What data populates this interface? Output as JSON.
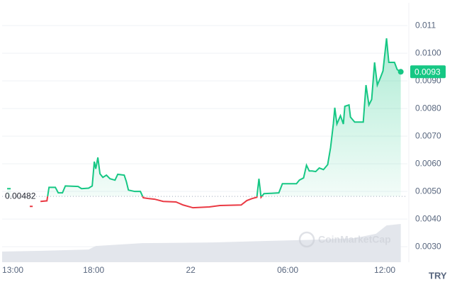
{
  "chart_data": {
    "type": "line",
    "currency": "TRY",
    "watermark": "CoinMarketCap",
    "open_price": 0.00482,
    "price_tag": {
      "value": 0.00933,
      "label": "0.0093"
    },
    "xlim": [
      -0.66,
      24.4
    ],
    "ylim": [
      0.00244,
      0.01162
    ],
    "y2lim": [
      0,
      100
    ],
    "grid": true,
    "xticks": [
      {
        "value": 0,
        "label": "13:00"
      },
      {
        "value": 5,
        "label": "18:00"
      },
      {
        "value": 11,
        "label": "22"
      },
      {
        "value": 17,
        "label": "06:00"
      },
      {
        "value": 23,
        "label": "12:00"
      }
    ],
    "yticks": [
      {
        "value": 0.003,
        "label": "0.0030"
      },
      {
        "value": 0.004,
        "label": "0.0040"
      },
      {
        "value": 0.005,
        "label": "0.0050"
      },
      {
        "value": 0.006,
        "label": "0.0060"
      },
      {
        "value": 0.007,
        "label": "0.0070"
      },
      {
        "value": 0.008,
        "label": "0.0080"
      },
      {
        "value": 0.009,
        "label": "0.0090"
      },
      {
        "value": 0.01,
        "label": "0.0100"
      },
      0.011
    ],
    "colors": {
      "up": "#16c784",
      "down": "#ea3943",
      "volume": "#e3e6ec"
    },
    "series": [
      {
        "x": [
          -0.35,
          -0.13,
          null,
          1.05,
          1.23,
          null,
          1.71,
          2.11,
          2.24,
          2.63,
          2.81,
          3.07,
          3.25,
          4.04,
          4.25,
          4.69,
          4.91,
          5.04,
          5.13,
          5.26,
          5.39,
          5.57,
          5.79,
          6.01,
          6.32,
          6.49,
          6.89,
          7.02,
          7.15,
          7.54,
          7.89,
          8.07,
          8.42,
          8.77,
          9.3,
          10.09,
          10.53,
          11.14,
          12.15,
          12.81,
          14.12,
          14.47,
          14.78,
          15.09,
          15.22,
          15.35,
          15.53,
          16.45,
          16.67,
          17.54,
          17.72,
          17.98,
          18.16,
          18.33,
          18.51,
          18.73,
          18.95,
          19.21,
          19.47,
          19.65,
          19.82,
          19.91,
          20.04,
          20.26,
          20.44,
          20.53,
          20.79,
          20.88,
          21.14,
          21.67,
          21.84,
          22.02,
          22.19,
          22.37,
          22.54,
          22.72,
          22.89,
          23.11,
          23.25,
          23.6,
          23.77,
          23.99
        ],
        "values": [
          0.0051,
          0.0051,
          null,
          0.00446,
          0.00446,
          null,
          0.00464,
          0.00466,
          0.00515,
          0.00515,
          0.00495,
          0.00495,
          0.0052,
          0.00518,
          0.0051,
          0.00512,
          0.0052,
          0.00608,
          0.00582,
          0.00623,
          0.00564,
          0.00551,
          0.00559,
          0.00546,
          0.00541,
          0.00562,
          0.00559,
          0.00536,
          0.00505,
          0.005,
          0.005,
          0.00477,
          0.00474,
          0.00472,
          0.00464,
          0.00462,
          0.00451,
          0.00441,
          0.00444,
          0.00449,
          0.00451,
          0.00467,
          0.00474,
          0.00479,
          0.00546,
          0.00479,
          0.00492,
          0.00495,
          0.00528,
          0.00528,
          0.00541,
          0.00549,
          0.00595,
          0.00574,
          0.00574,
          0.00572,
          0.00585,
          0.00579,
          0.00597,
          0.00659,
          0.00744,
          0.00803,
          0.00744,
          0.00774,
          0.00744,
          0.00808,
          0.00813,
          0.00769,
          0.00751,
          0.00751,
          0.00885,
          0.00813,
          0.00833,
          0.00967,
          0.00885,
          0.0091,
          0.00936,
          0.01054,
          0.00967,
          0.00967,
          0.00941,
          0.00933
        ]
      },
      {
        "axis": "y2",
        "x": [
          -0.66,
          1.84,
          4.69,
          5.13,
          7.98,
          12.37,
          15.88,
          18.95,
          21.14,
          22.46,
          23.11,
          23.99
        ],
        "values": [
          4.2,
          4.5,
          5.0,
          6.4,
          7.5,
          7.8,
          8.4,
          8.9,
          9.5,
          11.2,
          14.5,
          15.1
        ]
      }
    ]
  }
}
